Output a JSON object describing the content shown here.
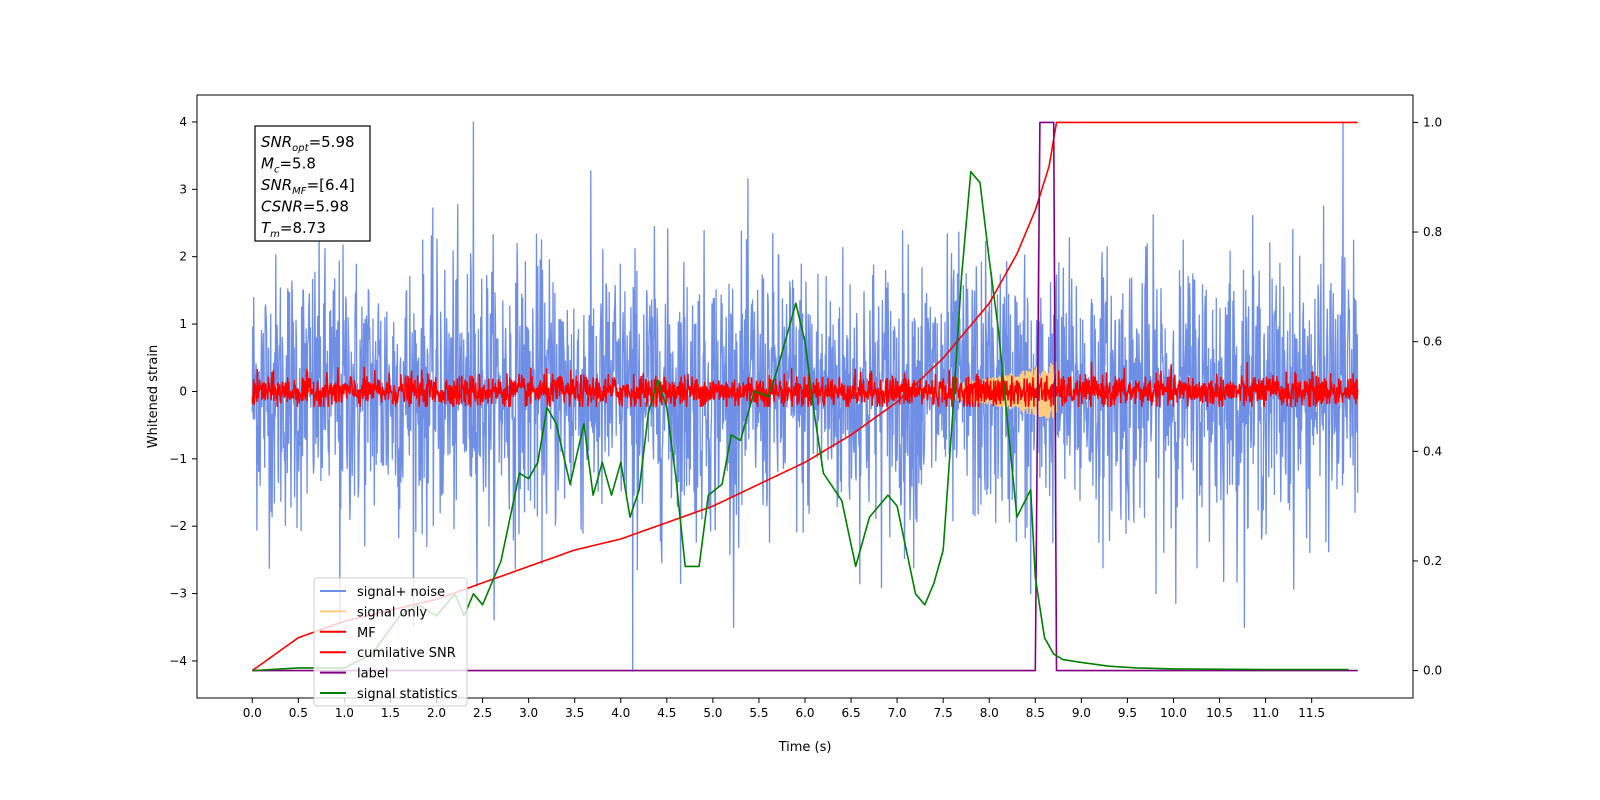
{
  "chart_data": {
    "type": "line",
    "xlabel": "Time (s)",
    "ylabel": "Whitened strain",
    "xlim": [
      -0.6,
      12.6
    ],
    "ylim": [
      -4.55,
      4.4
    ],
    "y2lim": [
      -0.05,
      1.05
    ],
    "x_ticks": [
      0.0,
      0.5,
      1.0,
      1.5,
      2.0,
      2.5,
      3.0,
      3.5,
      4.0,
      4.5,
      5.0,
      5.5,
      6.0,
      6.5,
      7.0,
      7.5,
      8.0,
      8.5,
      9.0,
      9.5,
      10.0,
      10.5,
      11.0,
      11.5
    ],
    "x_tick_labels": [
      "0.0",
      "0.5",
      "1.0",
      "1.5",
      "2.0",
      "2.5",
      "3.0",
      "3.5",
      "4.0",
      "4.5",
      "5.0",
      "5.5",
      "6.0",
      "6.5",
      "7.0",
      "7.5",
      "8.0",
      "8.5",
      "9.0",
      "9.5",
      "10.0",
      "10.5",
      "11.0",
      "11.5"
    ],
    "y_ticks": [
      4,
      3,
      2,
      1,
      0,
      -1,
      -2,
      -3,
      -4
    ],
    "y_tick_labels": [
      "4",
      "3",
      "2",
      "1",
      "0",
      "−1",
      "−2",
      "−3",
      "−4"
    ],
    "y2_ticks": [
      1.0,
      0.8,
      0.6,
      0.4,
      0.2,
      0.0
    ],
    "y2_tick_labels": [
      "1.0",
      "0.8",
      "0.6",
      "0.4",
      "0.2",
      "0.0"
    ],
    "grid": false,
    "legend_position": "lower-left",
    "series": [
      {
        "name": "signal+ noise",
        "axis": "left",
        "color": "#6f8ee6",
        "style": "noise",
        "x_range": [
          0.0,
          12.0
        ],
        "std": 1.0,
        "clip": [
          -3.5,
          4.0
        ],
        "outliers": [
          [
            2.4,
            4.0
          ],
          [
            4.13,
            -4.15
          ],
          [
            11.84,
            4.0
          ],
          [
            8.45,
            -3.0
          ],
          [
            0.95,
            -3.45
          ]
        ]
      },
      {
        "name": "signal only",
        "axis": "left",
        "color": "#ffcc80",
        "style": "chirp",
        "x_range": [
          6.5,
          8.73
        ],
        "amplitude": 0.45
      },
      {
        "name": "MF",
        "axis": "left",
        "color": "#ff0000",
        "style": "noise",
        "x_range": [
          0.0,
          12.0
        ],
        "std": 0.12,
        "clip": [
          -0.22,
          0.65
        ]
      },
      {
        "name": "cumilative SNR",
        "axis": "right",
        "color": "#ff0000",
        "style": "line",
        "x": [
          0.0,
          0.5,
          1.0,
          1.5,
          2.0,
          2.5,
          3.0,
          3.5,
          4.0,
          4.5,
          5.0,
          5.5,
          6.0,
          6.5,
          7.0,
          7.5,
          8.0,
          8.3,
          8.5,
          8.65,
          8.73,
          12.0
        ],
        "values": [
          0.0,
          0.06,
          0.09,
          0.11,
          0.13,
          0.16,
          0.19,
          0.22,
          0.24,
          0.27,
          0.3,
          0.34,
          0.38,
          0.43,
          0.49,
          0.57,
          0.67,
          0.76,
          0.84,
          0.92,
          1.0,
          1.0
        ]
      },
      {
        "name": "label",
        "axis": "right",
        "color": "#800080",
        "style": "line",
        "x": [
          0.0,
          8.5,
          8.55,
          8.7,
          8.73,
          12.0
        ],
        "values": [
          0.0,
          0.0,
          1.0,
          1.0,
          0.0,
          0.0
        ]
      },
      {
        "name": "signal statistics",
        "axis": "right",
        "color": "#008000",
        "style": "line",
        "x": [
          0.0,
          0.5,
          1.0,
          1.3,
          1.6,
          1.8,
          2.0,
          2.2,
          2.3,
          2.4,
          2.5,
          2.7,
          2.8,
          2.9,
          3.0,
          3.1,
          3.2,
          3.3,
          3.45,
          3.6,
          3.7,
          3.8,
          3.9,
          4.0,
          4.1,
          4.2,
          4.3,
          4.4,
          4.5,
          4.6,
          4.7,
          4.85,
          4.95,
          5.1,
          5.2,
          5.3,
          5.45,
          5.6,
          5.7,
          5.9,
          6.0,
          6.1,
          6.2,
          6.4,
          6.55,
          6.7,
          6.9,
          7.0,
          7.2,
          7.3,
          7.4,
          7.5,
          7.6,
          7.7,
          7.8,
          7.9,
          8.0,
          8.1,
          8.3,
          8.45,
          8.5,
          8.6,
          8.7,
          8.8,
          9.0,
          9.3,
          9.6,
          10.0,
          11.0,
          11.9
        ],
        "values": [
          0.0,
          0.005,
          0.005,
          0.03,
          0.1,
          0.12,
          0.1,
          0.14,
          0.1,
          0.14,
          0.12,
          0.2,
          0.28,
          0.36,
          0.35,
          0.38,
          0.48,
          0.45,
          0.34,
          0.45,
          0.32,
          0.38,
          0.32,
          0.38,
          0.28,
          0.33,
          0.47,
          0.53,
          0.48,
          0.35,
          0.19,
          0.19,
          0.32,
          0.34,
          0.43,
          0.42,
          0.51,
          0.5,
          0.55,
          0.67,
          0.6,
          0.47,
          0.36,
          0.31,
          0.19,
          0.28,
          0.32,
          0.3,
          0.14,
          0.12,
          0.16,
          0.22,
          0.46,
          0.72,
          0.91,
          0.89,
          0.75,
          0.62,
          0.28,
          0.33,
          0.17,
          0.06,
          0.03,
          0.02,
          0.015,
          0.008,
          0.005,
          0.003,
          0.002,
          0.002
        ]
      }
    ],
    "annotation": {
      "lines": [
        {
          "prefix": "SNR",
          "sub": "opt",
          "value": "=5.98"
        },
        {
          "prefix": "M",
          "sub": "c",
          "value": "=5.8"
        },
        {
          "prefix": "SNR",
          "sub": "MF",
          "value": "=[6.4]"
        },
        {
          "prefix": "CSNR",
          "sub": "",
          "value": "=5.98"
        },
        {
          "prefix": "T",
          "sub": "m",
          "value": "=8.73"
        }
      ]
    }
  }
}
